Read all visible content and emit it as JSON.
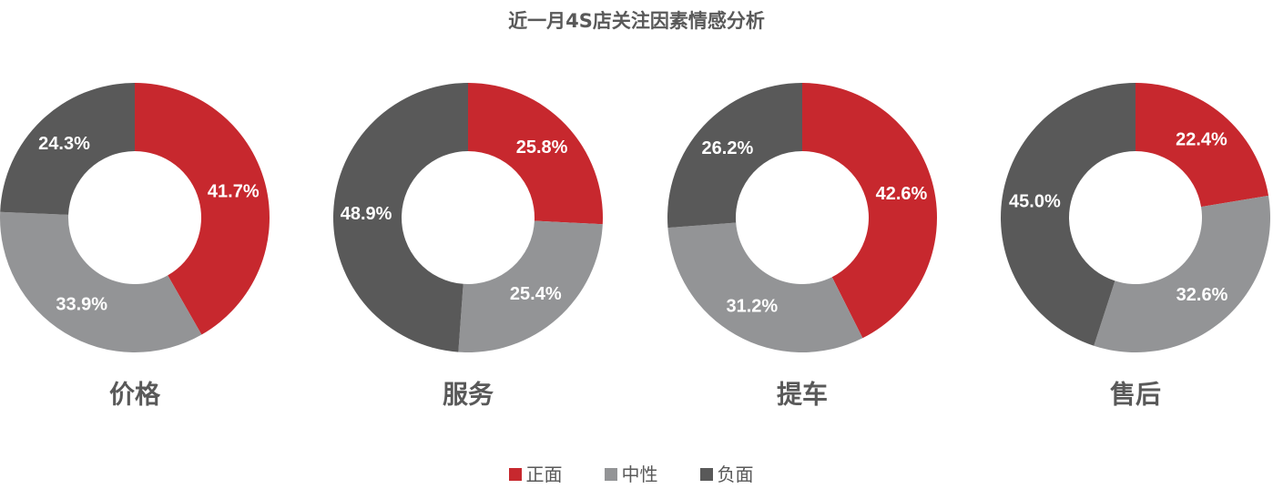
{
  "chart_data": {
    "type": "pie",
    "title": "近一月4S店关注因素情感分析",
    "legend": {
      "placement": "bottom",
      "entries": [
        {
          "name": "正面",
          "color": "#c7282e"
        },
        {
          "name": "中性",
          "color": "#939496"
        },
        {
          "name": "负面",
          "color": "#595959"
        }
      ]
    },
    "charts": [
      {
        "category": "价格",
        "slices": [
          {
            "name": "正面",
            "value": 41.7,
            "label": "41.7%"
          },
          {
            "name": "中性",
            "value": 33.9,
            "label": "33.9%"
          },
          {
            "name": "负面",
            "value": 24.3,
            "label": "24.3%"
          }
        ]
      },
      {
        "category": "服务",
        "slices": [
          {
            "name": "正面",
            "value": 25.8,
            "label": "25.8%"
          },
          {
            "name": "中性",
            "value": 25.4,
            "label": "25.4%"
          },
          {
            "name": "负面",
            "value": 48.9,
            "label": "48.9%"
          }
        ]
      },
      {
        "category": "提车",
        "slices": [
          {
            "name": "正面",
            "value": 42.6,
            "label": "42.6%"
          },
          {
            "name": "中性",
            "value": 31.2,
            "label": "31.2%"
          },
          {
            "name": "负面",
            "value": 26.2,
            "label": "26.2%"
          }
        ]
      },
      {
        "category": "售后",
        "slices": [
          {
            "name": "正面",
            "value": 22.4,
            "label": "22.4%"
          },
          {
            "name": "中性",
            "value": 32.6,
            "label": "32.6%"
          },
          {
            "name": "负面",
            "value": 45.0,
            "label": "45.0%"
          }
        ]
      }
    ]
  }
}
